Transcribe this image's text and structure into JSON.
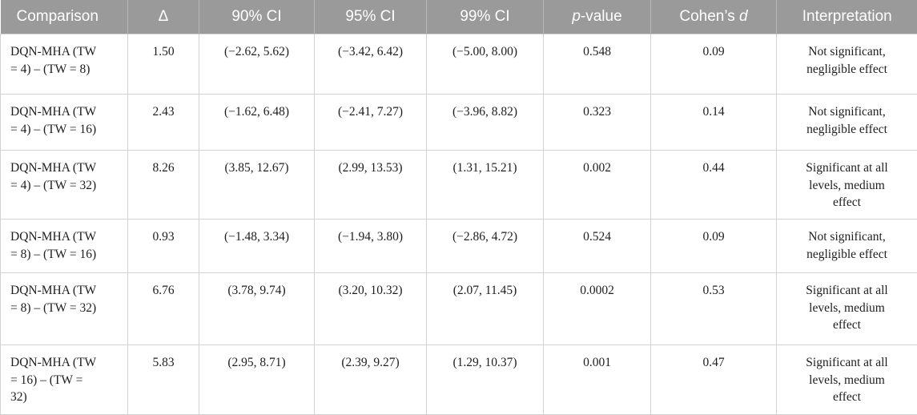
{
  "colors": {
    "header_bg": "#9a9a9a",
    "header_text": "#ffffff",
    "header_divider": "#b7b7b7",
    "body_border": "#d2d2d2",
    "body_text": "#1e1e1e"
  },
  "table": {
    "columns": [
      {
        "key": "comparison",
        "segments": [
          {
            "text": "Comparison"
          }
        ]
      },
      {
        "key": "delta",
        "segments": [
          {
            "text": "Δ"
          }
        ]
      },
      {
        "key": "ci90",
        "segments": [
          {
            "text": "90% CI"
          }
        ]
      },
      {
        "key": "ci95",
        "segments": [
          {
            "text": "95% CI"
          }
        ]
      },
      {
        "key": "ci99",
        "segments": [
          {
            "text": "99% CI"
          }
        ]
      },
      {
        "key": "p_value",
        "segments": [
          {
            "text": "p",
            "italic": true
          },
          {
            "text": "-value"
          }
        ]
      },
      {
        "key": "cohens_d",
        "segments": [
          {
            "text": "Cohen’s "
          },
          {
            "text": "d",
            "italic": true
          }
        ]
      },
      {
        "key": "interpretation",
        "segments": [
          {
            "text": "Interpretation"
          }
        ]
      }
    ],
    "rows": [
      {
        "comparison": "DQN-MHA (TW = 4) – (TW = 8)",
        "delta": "1.50",
        "ci90": "(−2.62, 5.62)",
        "ci95": "(−3.42, 6.42)",
        "ci99": "(−5.00, 8.00)",
        "p_value": "0.548",
        "cohens_d": "0.09",
        "interpretation": "Not significant, negligible effect"
      },
      {
        "comparison": "DQN-MHA (TW = 4) – (TW = 16)",
        "delta": "2.43",
        "ci90": "(−1.62, 6.48)",
        "ci95": "(−2.41, 7.27)",
        "ci99": "(−3.96, 8.82)",
        "p_value": "0.323",
        "cohens_d": "0.14",
        "interpretation": "Not significant, negligible effect"
      },
      {
        "comparison": "DQN-MHA (TW = 4) – (TW = 32)",
        "delta": "8.26",
        "ci90": "(3.85, 12.67)",
        "ci95": "(2.99, 13.53)",
        "ci99": "(1.31, 15.21)",
        "p_value": "0.002",
        "cohens_d": "0.44",
        "interpretation": "Significant at all levels, medium effect"
      },
      {
        "comparison": "DQN-MHA (TW = 8) – (TW = 16)",
        "delta": "0.93",
        "ci90": "(−1.48, 3.34)",
        "ci95": "(−1.94, 3.80)",
        "ci99": "(−2.86, 4.72)",
        "p_value": "0.524",
        "cohens_d": "0.09",
        "interpretation": "Not significant, negligible effect"
      },
      {
        "comparison": "DQN-MHA (TW = 8) – (TW = 32)",
        "delta": "6.76",
        "ci90": "(3.78, 9.74)",
        "ci95": "(3.20, 10.32)",
        "ci99": "(2.07, 11.45)",
        "p_value": "0.0002",
        "cohens_d": "0.53",
        "interpretation": "Significant at all levels, medium effect"
      },
      {
        "comparison": "DQN-MHA (TW = 16) – (TW = 32)",
        "delta": "5.83",
        "ci90": "(2.95, 8.71)",
        "ci95": "(2.39, 9.27)",
        "ci99": "(1.29, 10.37)",
        "p_value": "0.001",
        "cohens_d": "0.47",
        "interpretation": "Significant at all levels, medium effect"
      }
    ]
  }
}
